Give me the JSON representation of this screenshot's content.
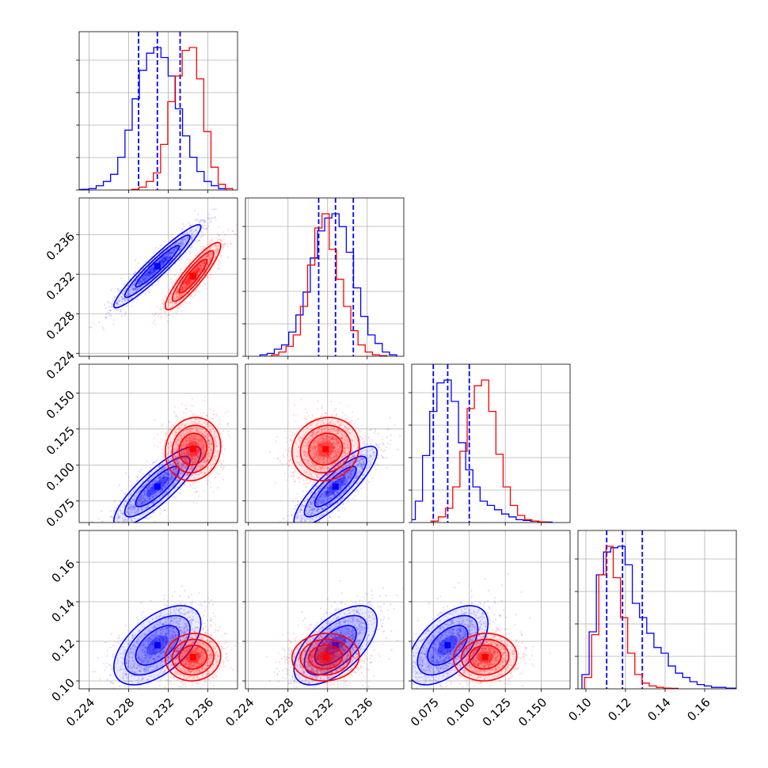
{
  "chart_data": {
    "type": "corner",
    "grid": true,
    "n_params": 4,
    "series": [
      {
        "name": "",
        "color": "#0000ff",
        "means": [
          0.2309,
          0.2328,
          0.085,
          0.118
        ],
        "sds": [
          0.0022,
          0.0021,
          0.014,
          0.01
        ],
        "corr": [
          [
            1.0,
            0.95,
            0.85,
            0.55
          ],
          [
            0.95,
            1.0,
            0.85,
            0.6
          ],
          [
            0.85,
            0.85,
            1.0,
            0.55
          ],
          [
            0.55,
            0.6,
            0.55,
            1.0
          ]
        ],
        "quantiles": [
          [
            0.229,
            0.2309,
            0.2332
          ],
          [
            0.2311,
            0.2328,
            0.2346
          ],
          [
            0.075,
            0.085,
            0.1
          ],
          [
            0.1105,
            0.1185,
            0.1285
          ]
        ],
        "hist": [
          [
            0.003,
            0.005,
            0.01,
            0.03,
            0.06,
            0.11,
            0.23,
            0.42,
            0.64,
            0.84,
            0.96,
            1.0,
            0.93,
            0.8,
            0.57,
            0.38,
            0.23,
            0.13,
            0.06,
            0.03,
            0.01
          ],
          [
            0.01,
            0.02,
            0.05,
            0.08,
            0.17,
            0.29,
            0.45,
            0.69,
            0.88,
            0.97,
            1.0,
            0.91,
            0.73,
            0.48,
            0.28,
            0.15,
            0.09,
            0.03,
            0.01
          ],
          [
            0.02,
            0.15,
            0.47,
            0.78,
            0.98,
            1.0,
            0.85,
            0.56,
            0.37,
            0.25,
            0.15,
            0.12,
            0.09,
            0.06,
            0.04,
            0.02,
            0.015,
            0.01,
            0.005,
            0.003
          ],
          [
            0.1,
            0.4,
            0.8,
            0.96,
            0.99,
            1.0,
            0.87,
            0.6,
            0.5,
            0.39,
            0.29,
            0.25,
            0.16,
            0.11,
            0.08,
            0.05,
            0.03,
            0.02,
            0.01,
            0.01,
            0.005,
            0.005
          ]
        ]
      },
      {
        "name": "",
        "color": "#ff0000",
        "means": [
          0.2345,
          0.2318,
          0.111,
          0.112
        ],
        "sds": [
          0.0014,
          0.0017,
          0.011,
          0.006
        ],
        "corr": [
          [
            1.0,
            0.9,
            0.1,
            0.05
          ],
          [
            0.9,
            1.0,
            0.1,
            0.05
          ],
          [
            0.1,
            0.1,
            1.0,
            0.05
          ],
          [
            0.05,
            0.05,
            0.05,
            1.0
          ]
        ],
        "quantiles": [],
        "hist": [
          [
            0.005,
            0.02,
            0.06,
            0.12,
            0.32,
            0.62,
            0.8,
            0.98,
            1.0,
            0.78,
            0.41,
            0.16,
            0.04,
            0.01
          ],
          [
            0.01,
            0.03,
            0.07,
            0.15,
            0.35,
            0.64,
            0.9,
            1.0,
            0.75,
            0.54,
            0.35,
            0.18,
            0.08,
            0.03,
            0.01,
            0.005
          ],
          [
            0.01,
            0.04,
            0.1,
            0.25,
            0.5,
            0.8,
            0.96,
            1.0,
            0.78,
            0.48,
            0.25,
            0.12,
            0.05,
            0.02,
            0.01,
            0.005
          ],
          [
            0.08,
            0.38,
            0.8,
            1.0,
            0.78,
            0.5,
            0.25,
            0.1,
            0.04,
            0.02,
            0.01,
            0.005,
            0.003
          ]
        ]
      }
    ],
    "axes": [
      {
        "range": [
          0.223,
          0.239
        ],
        "ticks": [
          "0.224",
          "0.228",
          "0.232",
          "0.236"
        ],
        "tick_values": [
          0.224,
          0.228,
          0.232,
          0.236
        ]
      },
      {
        "range": [
          0.2237,
          0.2397
        ],
        "ticks": [
          "0.224",
          "0.228",
          "0.232",
          "0.236"
        ],
        "tick_values": [
          0.224,
          0.228,
          0.232,
          0.236
        ]
      },
      {
        "range": [
          0.06,
          0.17
        ],
        "ticks": [
          "0.075",
          "0.100",
          "0.125",
          "0.150"
        ],
        "tick_values": [
          0.075,
          0.1,
          0.125,
          0.15
        ]
      },
      {
        "range": [
          0.096,
          0.176
        ],
        "ticks": [
          "0.10",
          "0.12",
          "0.14",
          "0.16"
        ],
        "tick_values": [
          0.1,
          0.12,
          0.14,
          0.16
        ]
      }
    ]
  }
}
